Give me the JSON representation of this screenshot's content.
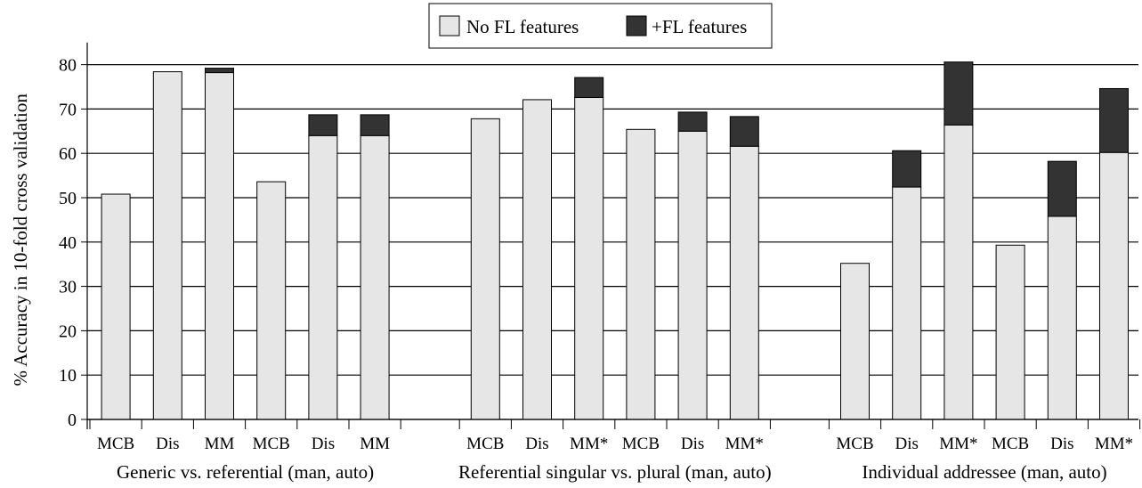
{
  "chart_data": {
    "type": "bar",
    "stacked": true,
    "ylabel": "% Accuracy in 10-fold cross validation",
    "ylim": [
      0,
      85
    ],
    "yticks": [
      0,
      10,
      20,
      30,
      40,
      50,
      60,
      70,
      80
    ],
    "grid": true,
    "legend_position": "top-center",
    "series": [
      {
        "name": "No FL features",
        "color": "#e6e6e6"
      },
      {
        "name": "+FL features",
        "color": "#333333"
      }
    ],
    "groups": [
      {
        "label": "Generic vs. referential (man, auto)",
        "bars": [
          {
            "label": "MCB",
            "base": 50.8,
            "fl": 0
          },
          {
            "label": "Dis",
            "base": 78.4,
            "fl": 0
          },
          {
            "label": "MM",
            "base": 78.2,
            "fl": 1.0
          },
          {
            "label": "MCB",
            "base": 53.6,
            "fl": 0
          },
          {
            "label": "Dis",
            "base": 64.0,
            "fl": 4.7
          },
          {
            "label": "MM",
            "base": 64.0,
            "fl": 4.7
          }
        ]
      },
      {
        "label": "Referential singular vs. plural (man, auto)",
        "bars": [
          {
            "label": "MCB",
            "base": 67.8,
            "fl": 0
          },
          {
            "label": "Dis",
            "base": 72.1,
            "fl": 0
          },
          {
            "label": "MM*",
            "base": 72.6,
            "fl": 4.5
          },
          {
            "label": "MCB",
            "base": 65.4,
            "fl": 0
          },
          {
            "label": "Dis",
            "base": 65.0,
            "fl": 4.3
          },
          {
            "label": "MM*",
            "base": 61.6,
            "fl": 6.7
          }
        ]
      },
      {
        "label": "Individual addressee (man, auto)",
        "bars": [
          {
            "label": "MCB",
            "base": 35.2,
            "fl": 0
          },
          {
            "label": "Dis",
            "base": 52.4,
            "fl": 8.2
          },
          {
            "label": "MM*",
            "base": 66.4,
            "fl": 14.2
          },
          {
            "label": "MCB",
            "base": 39.3,
            "fl": 0
          },
          {
            "label": "Dis",
            "base": 45.8,
            "fl": 12.4
          },
          {
            "label": "MM*",
            "base": 60.2,
            "fl": 14.4
          }
        ]
      }
    ]
  }
}
